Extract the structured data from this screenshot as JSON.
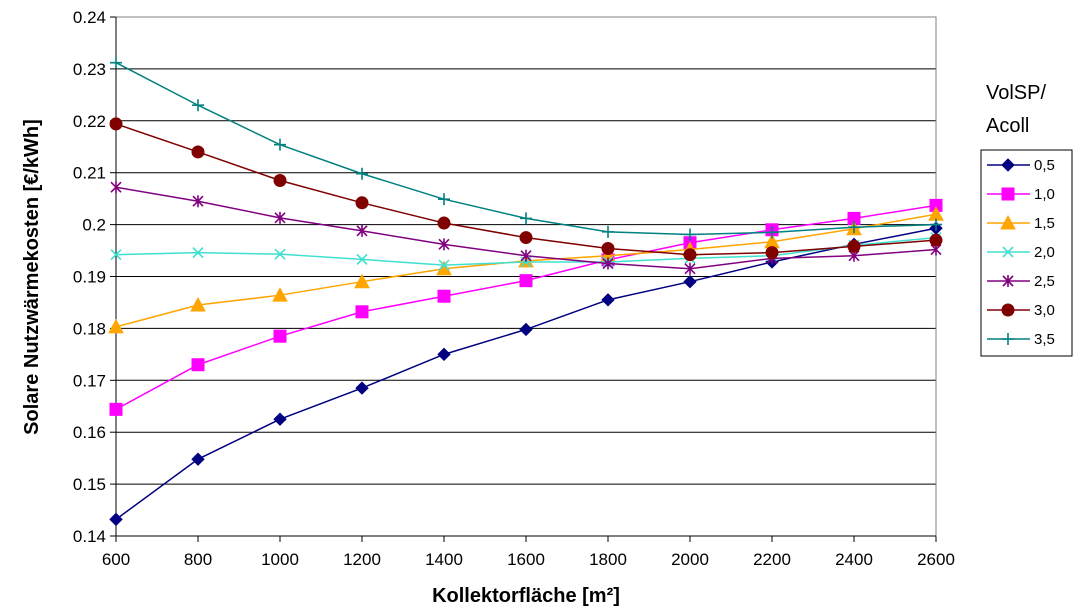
{
  "chart_data": {
    "type": "line",
    "xlabel": "Kollektorfläche [m²]",
    "ylabel": "Solare Nutzwärmekosten [€/kWh]",
    "xlim": [
      600,
      2600
    ],
    "ylim": [
      0.14,
      0.24
    ],
    "x_ticks": [
      "600",
      "800",
      "1000",
      "1200",
      "1400",
      "1600",
      "1800",
      "2000",
      "2200",
      "2400",
      "2600"
    ],
    "y_ticks": [
      "0.14",
      "0.15",
      "0.16",
      "0.17",
      "0.18",
      "0.19",
      "0.2",
      "0.21",
      "0.22",
      "0.23",
      "0.24"
    ],
    "grid": "horizontal",
    "legend": {
      "title_line1": "VolSP/",
      "title_line2": "Acoll",
      "placement": "right"
    },
    "x": [
      600,
      800,
      1000,
      1200,
      1400,
      1600,
      1800,
      2000,
      2200,
      2400,
      2600
    ],
    "series": [
      {
        "name": "0,5",
        "color": "#000080",
        "marker": "diamond",
        "values": [
          0.1432,
          0.1548,
          0.1625,
          0.1685,
          0.175,
          0.1798,
          0.1855,
          0.189,
          0.1928,
          0.1962,
          0.1993
        ]
      },
      {
        "name": "1,0",
        "color": "#ff00ff",
        "marker": "square",
        "values": [
          0.1644,
          0.173,
          0.1785,
          0.1832,
          0.1862,
          0.1892,
          0.1932,
          0.1965,
          0.199,
          0.2012,
          0.2037
        ]
      },
      {
        "name": "1,5",
        "color": "#ffa500",
        "marker": "triangle",
        "values": [
          0.1803,
          0.1845,
          0.1864,
          0.189,
          0.1915,
          0.193,
          0.194,
          0.1952,
          0.1967,
          0.1992,
          0.202
        ]
      },
      {
        "name": "2,0",
        "color": "#40e0d0",
        "marker": "x",
        "values": [
          0.1942,
          0.1946,
          0.1943,
          0.1933,
          0.1922,
          0.1928,
          0.1928,
          0.1935,
          0.194,
          0.196,
          0.1975
        ]
      },
      {
        "name": "2,5",
        "color": "#800080",
        "marker": "star",
        "values": [
          0.2072,
          0.2045,
          0.2013,
          0.1988,
          0.1962,
          0.194,
          0.1925,
          0.1915,
          0.1935,
          0.194,
          0.1952
        ]
      },
      {
        "name": "3,0",
        "color": "#800000",
        "marker": "circle",
        "values": [
          0.2194,
          0.214,
          0.2085,
          0.2042,
          0.2003,
          0.1975,
          0.1954,
          0.1942,
          0.1946,
          0.1958,
          0.197
        ]
      },
      {
        "name": "3,5",
        "color": "#008080",
        "marker": "plus",
        "values": [
          0.2312,
          0.223,
          0.2154,
          0.2098,
          0.2049,
          0.2012,
          0.1986,
          0.1981,
          0.1985,
          0.1995,
          0.2
        ]
      }
    ]
  }
}
